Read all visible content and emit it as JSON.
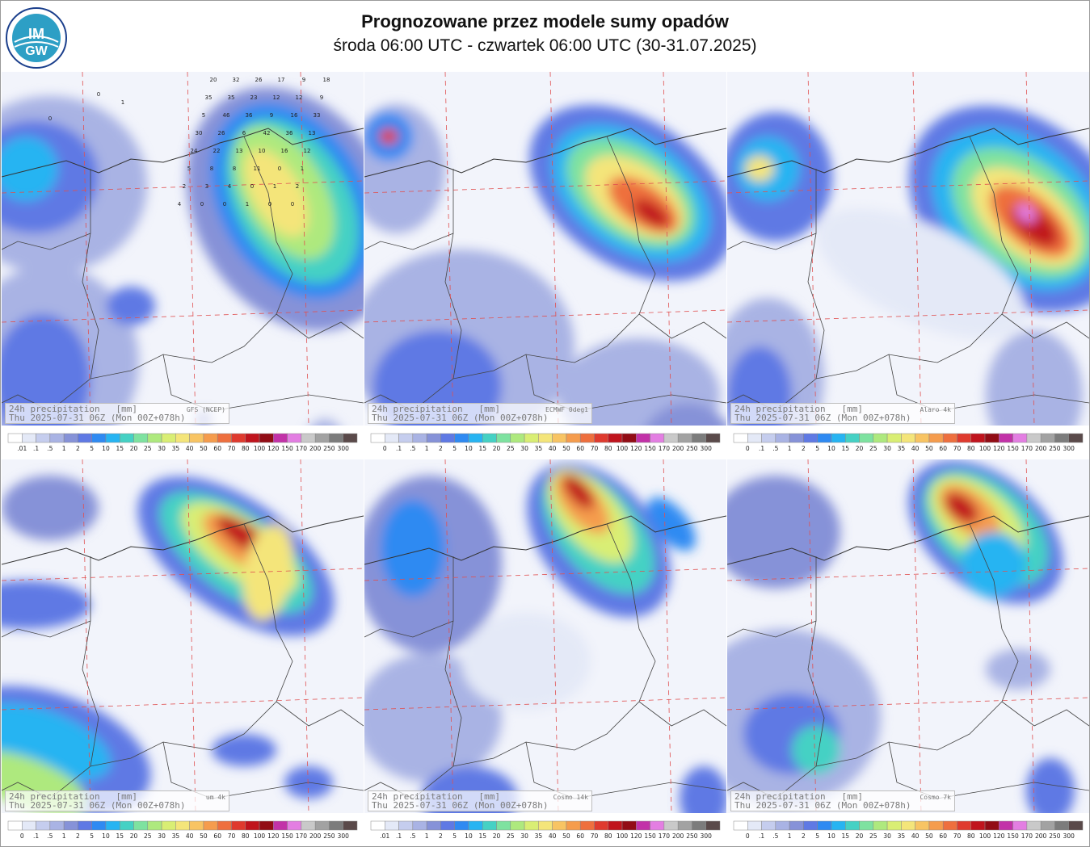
{
  "header": {
    "title": "Prognozowane przez modele sumy opadów",
    "subtitle": "środa 06:00 UTC - czwartek 06:00 UTC (30-31.07.2025)"
  },
  "logo": {
    "text_top": "IM",
    "text_bottom": "GW",
    "icon": "imgw-logo"
  },
  "panels": [
    {
      "model": "GFS (NCEP)",
      "line1": "24h precipitation   [mm]",
      "line2": "Thu 2025-07-31 06Z (Mon 00Z+078h)",
      "first_tick": ".01"
    },
    {
      "model": "ECMWF 0deg1",
      "line1": "24h precipitation   [mm]",
      "line2": "Thu 2025-07-31 06Z (Mon 00Z+078h)",
      "first_tick": "0"
    },
    {
      "model": "Alaro 4k",
      "line1": "24h precipitation   [mm]",
      "line2": "Thu 2025-07-31 06Z (Mon 00Z+078h)",
      "first_tick": "0"
    },
    {
      "model": "um 4k",
      "line1": "24h precipitation   [mm]",
      "line2": "Thu 2025-07-31 06Z (Mon 00Z+078h)",
      "first_tick": "0"
    },
    {
      "model": "Cosmo 14k",
      "line1": "24h precipitation   [mm]",
      "line2": "Thu 2025-07-31 06Z (Mon 00Z+078h)",
      "first_tick": ".01"
    },
    {
      "model": "Cosmo 7k",
      "line1": "24h precipitation   [mm]",
      "line2": "Thu 2025-07-31 06Z (Mon 00Z+078h)",
      "first_tick": "0"
    }
  ],
  "colorbar": {
    "ticks": [
      ".1",
      ".5",
      "1",
      "2",
      "5",
      "10",
      "15",
      "20",
      "25",
      "30",
      "35",
      "40",
      "50",
      "60",
      "70",
      "80",
      "100",
      "120",
      "150",
      "170",
      "200",
      "250",
      "300"
    ],
    "colors": [
      "#ffffff",
      "#e4e9f7",
      "#c5cdee",
      "#a9b3e4",
      "#8692d8",
      "#5f79e4",
      "#2f8af2",
      "#27b4f2",
      "#45d1c4",
      "#7ee2a0",
      "#aee97e",
      "#d9ee74",
      "#f4e57a",
      "#f8c463",
      "#f59c4d",
      "#ee6f3e",
      "#df3a2e",
      "#c0141d",
      "#920c15",
      "#c232a8",
      "#e37ee2",
      "#c9c9c9",
      "#a2a2a2",
      "#7c7c7c",
      "#5a4a4a"
    ]
  },
  "gfs_values": [
    "20",
    "32",
    "26",
    "17",
    "9",
    "18",
    "35",
    "35",
    "23",
    "12",
    "12",
    "9",
    "5",
    "46",
    "36",
    "9",
    "16",
    "33",
    "30",
    "26",
    "6",
    "42",
    "36",
    "13",
    "24",
    "22",
    "13",
    "10",
    "16",
    "12",
    "5",
    "8",
    "8",
    "11",
    "0",
    "1",
    "2",
    "3",
    "4",
    "0",
    "1",
    "2",
    "4",
    "0",
    "0",
    "1",
    "0",
    "0",
    "0",
    "1",
    "0"
  ]
}
